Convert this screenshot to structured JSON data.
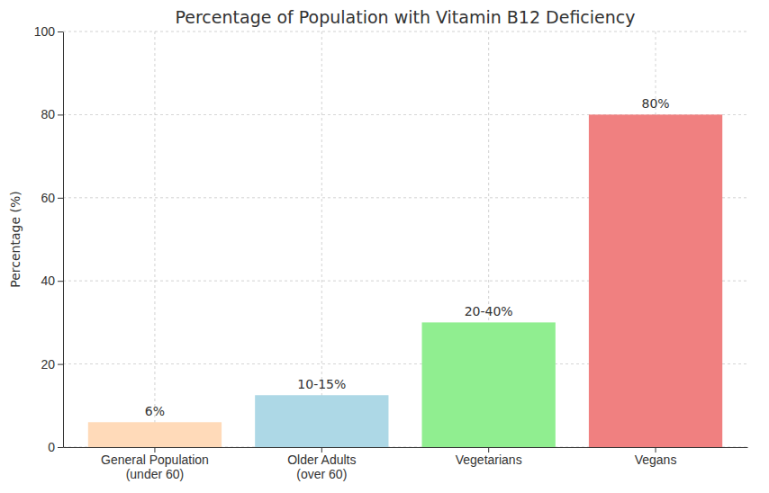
{
  "chart_data": {
    "type": "bar",
    "title": "Percentage of Population with Vitamin B12 Deficiency",
    "y_label": "Percentage (%)",
    "categories": [
      "General Population\n(under 60)",
      "Older Adults\n(over 60)",
      "Vegetarians",
      "Vegans"
    ],
    "values": [
      6,
      12.5,
      30,
      80
    ],
    "value_labels": [
      "6%",
      "10-15%",
      "20-40%",
      "80%"
    ],
    "colors": [
      "#ffdab9",
      "#add8e6",
      "#90ee90",
      "#f08080"
    ],
    "ylim": [
      0,
      100
    ],
    "yticks": [
      0,
      20,
      40,
      60,
      80,
      100
    ],
    "grid": true,
    "data_labels": true
  }
}
